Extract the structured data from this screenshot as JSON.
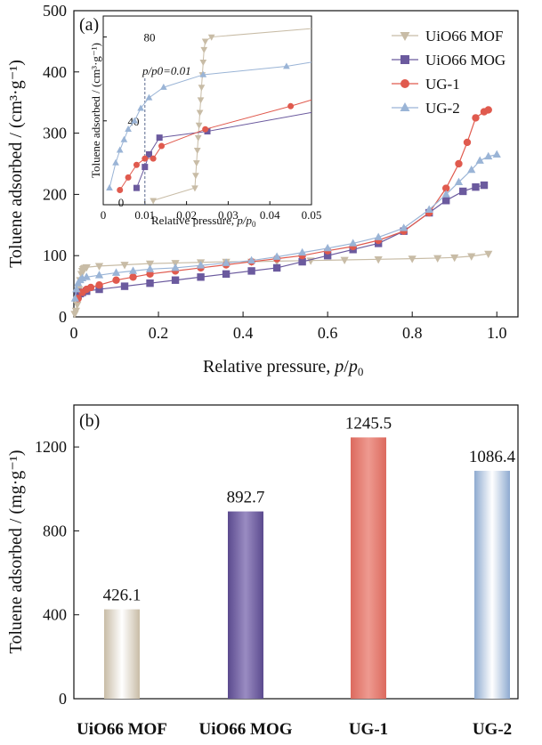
{
  "chart_data": [
    {
      "type": "line",
      "panel_label": "(a)",
      "title": "",
      "xlabel": "Relative pressure, p/p0",
      "ylabel": "Toluene adsorbed / (cm³·g⁻¹)",
      "xlim": [
        0,
        1.05
      ],
      "ylim": [
        0,
        500
      ],
      "xticks": [
        0,
        0.2,
        0.4,
        0.6,
        0.8,
        1.0
      ],
      "xtick_labels": [
        "0",
        "0.2",
        "0.4",
        "0.6",
        "0.8",
        "1.0"
      ],
      "yticks": [
        0,
        100,
        200,
        300,
        400,
        500
      ],
      "ytick_labels": [
        "0",
        "100",
        "200",
        "300",
        "400",
        "500"
      ],
      "legend_position": "top-right",
      "series": [
        {
          "name": "UiO66 MOF",
          "color": "#c8bca6",
          "marker": "triangle-down",
          "x": [
            0.002,
            0.005,
            0.008,
            0.01,
            0.012,
            0.015,
            0.018,
            0.02,
            0.022,
            0.024,
            0.026,
            0.03,
            0.06,
            0.12,
            0.18,
            0.24,
            0.3,
            0.36,
            0.42,
            0.48,
            0.56,
            0.64,
            0.72,
            0.8,
            0.86,
            0.9,
            0.94,
            0.98
          ],
          "y": [
            5,
            10,
            20,
            30,
            45,
            60,
            70,
            75,
            78,
            79,
            80,
            81,
            83,
            85,
            87,
            88,
            89,
            90,
            90,
            91,
            92,
            93,
            94,
            95,
            96,
            97,
            99,
            103
          ]
        },
        {
          "name": "UiO66 MOG",
          "color": "#6b5a9e",
          "marker": "square",
          "x": [
            0.01,
            0.015,
            0.02,
            0.03,
            0.06,
            0.12,
            0.18,
            0.24,
            0.3,
            0.36,
            0.42,
            0.48,
            0.54,
            0.6,
            0.66,
            0.72,
            0.78,
            0.84,
            0.88,
            0.92,
            0.95,
            0.97
          ],
          "y": [
            35,
            38,
            40,
            42,
            45,
            50,
            55,
            60,
            65,
            70,
            75,
            80,
            90,
            100,
            110,
            120,
            140,
            170,
            190,
            205,
            212,
            215
          ]
        },
        {
          "name": "UG-1",
          "color": "#e05a4e",
          "marker": "circle",
          "x": [
            0.01,
            0.02,
            0.03,
            0.04,
            0.06,
            0.1,
            0.14,
            0.18,
            0.24,
            0.3,
            0.36,
            0.42,
            0.48,
            0.54,
            0.6,
            0.66,
            0.72,
            0.78,
            0.84,
            0.88,
            0.91,
            0.93,
            0.95,
            0.97,
            0.98
          ],
          "y": [
            30,
            40,
            45,
            48,
            52,
            60,
            65,
            70,
            75,
            80,
            85,
            90,
            95,
            100,
            108,
            115,
            125,
            140,
            170,
            210,
            250,
            285,
            325,
            335,
            338
          ]
        },
        {
          "name": "UG-2",
          "color": "#9ab4d6",
          "marker": "triangle-up",
          "x": [
            0.003,
            0.006,
            0.01,
            0.015,
            0.02,
            0.03,
            0.06,
            0.1,
            0.14,
            0.18,
            0.24,
            0.3,
            0.36,
            0.42,
            0.48,
            0.54,
            0.6,
            0.66,
            0.72,
            0.78,
            0.84,
            0.88,
            0.91,
            0.94,
            0.96,
            0.98,
            1.0
          ],
          "y": [
            30,
            45,
            55,
            60,
            63,
            65,
            68,
            72,
            75,
            78,
            80,
            84,
            88,
            92,
            98,
            105,
            112,
            120,
            130,
            145,
            175,
            200,
            220,
            240,
            255,
            262,
            265
          ]
        }
      ],
      "inset": {
        "xlabel": "Relative pressure, p/p0",
        "ylabel": "Toluene adsorbed / (cm³·g⁻¹)",
        "xlim": [
          0,
          0.05
        ],
        "ylim": [
          0,
          90
        ],
        "xticks": [
          0,
          0.01,
          0.02,
          0.03,
          0.04,
          0.05
        ],
        "xtick_labels": [
          "0",
          "0.01",
          "0.02",
          "0.03",
          "0.04",
          "0.05"
        ],
        "yticks": [
          0,
          40,
          80
        ],
        "ytick_labels": [
          "0",
          "40",
          "80"
        ],
        "annotation": "p/p0=0.01",
        "annotation_x": 0.01,
        "series": [
          {
            "name": "UiO66 MOF",
            "x": [
              0.012,
              0.022,
              0.0222,
              0.0224,
              0.0226,
              0.0228,
              0.023,
              0.0232,
              0.0234,
              0.0236,
              0.0238,
              0.024,
              0.0242,
              0.0245,
              0.026,
              0.05
            ],
            "y": [
              2,
              8,
              14,
              20,
              26,
              32,
              38,
              44,
              50,
              56,
              62,
              68,
              74,
              78,
              80,
              84
            ]
          },
          {
            "name": "UiO66 MOG",
            "x": [
              0.008,
              0.01,
              0.011,
              0.0135,
              0.025,
              0.05
            ],
            "y": [
              8,
              18,
              24,
              32,
              35,
              44
            ]
          },
          {
            "name": "UG-1",
            "x": [
              0.004,
              0.006,
              0.008,
              0.01,
              0.012,
              0.014,
              0.0245,
              0.045,
              0.05
            ],
            "y": [
              7,
              13,
              19,
              22,
              22,
              28,
              36,
              47,
              50
            ]
          },
          {
            "name": "UG-2",
            "x": [
              0.0015,
              0.003,
              0.004,
              0.005,
              0.006,
              0.0075,
              0.009,
              0.011,
              0.0145,
              0.024,
              0.044,
              0.05
            ],
            "y": [
              8,
              20,
              26,
              31,
              36,
              40,
              46,
              51,
              56,
              62,
              66,
              68
            ]
          }
        ]
      }
    },
    {
      "type": "bar",
      "panel_label": "(b)",
      "title": "",
      "xlabel": "",
      "ylabel": "Toluene adsorbed / (mg·g⁻¹)",
      "ylim": [
        0,
        1400
      ],
      "yticks": [
        0,
        400,
        800,
        1200
      ],
      "ytick_labels": [
        "0",
        "400",
        "800",
        "1200"
      ],
      "categories": [
        "UiO66 MOF",
        "UiO66 MOG",
        "UG-1",
        "UG-2"
      ],
      "values": [
        426.1,
        892.7,
        1245.5,
        1086.4
      ],
      "value_labels": [
        "426.1",
        "892.7",
        "1245.5",
        "1086.4"
      ],
      "colors": [
        "#c8bca6",
        "#6b5a9e",
        "#e07468",
        "#9ab4d6"
      ]
    }
  ]
}
